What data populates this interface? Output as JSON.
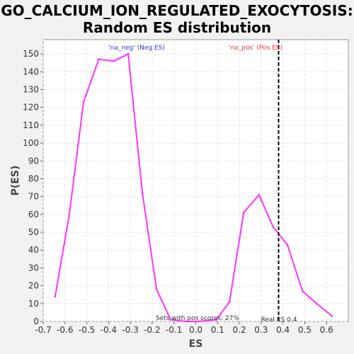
{
  "title_line1": "GO_CALCIUM_ION_REGULATED_EXOCYTOSIS:",
  "title_line2": "Random ES distribution",
  "colors": {
    "curve": "#ff33ff",
    "neg_label": "#3333cc",
    "pos_label": "#ee3333",
    "real_es_line": "#000000",
    "grid": "#e2e2e2"
  },
  "chart_data": {
    "type": "line",
    "xlabel": "ES",
    "ylabel": "P(ES)",
    "xlim": [
      -0.7,
      0.7
    ],
    "ylim": [
      0,
      158
    ],
    "xticks": [
      -0.7,
      -0.6,
      -0.5,
      -0.4,
      -0.3,
      -0.2,
      -0.1,
      0.0,
      0.1,
      0.2,
      0.3,
      0.4,
      0.5,
      0.6
    ],
    "xtick_labels": [
      "-0.7",
      "-0.6",
      "-0.5",
      "-0.4",
      "-0.3",
      "-0.2",
      "-0.1",
      "0.0",
      "0.1",
      "0.2",
      "0.3",
      "0.4",
      "0.5",
      "0.6"
    ],
    "yticks": [
      0,
      10,
      20,
      30,
      40,
      50,
      60,
      70,
      80,
      90,
      100,
      110,
      120,
      130,
      140,
      150
    ],
    "grid": true,
    "series": [
      {
        "x": [
          -0.645,
          -0.58,
          -0.515,
          -0.445,
          -0.375,
          -0.31,
          -0.245,
          -0.18,
          -0.115,
          -0.05,
          0.015,
          0.095,
          0.155,
          0.22,
          0.29,
          0.355,
          0.42,
          0.49,
          0.555,
          0.625
        ],
        "y": [
          14,
          60,
          123,
          147,
          146,
          150,
          72,
          18,
          1,
          0,
          0,
          1,
          11,
          61,
          71,
          53,
          43,
          17,
          10,
          3
        ]
      }
    ],
    "annotations": {
      "neg_label": "'na_neg' (Neg ES)",
      "pos_label": "'na_pos' (Pos ES)",
      "pos_scores": "Sets with pos scores: 27%",
      "real_es": "Real ES 0.4",
      "real_es_value": 0.38
    }
  }
}
